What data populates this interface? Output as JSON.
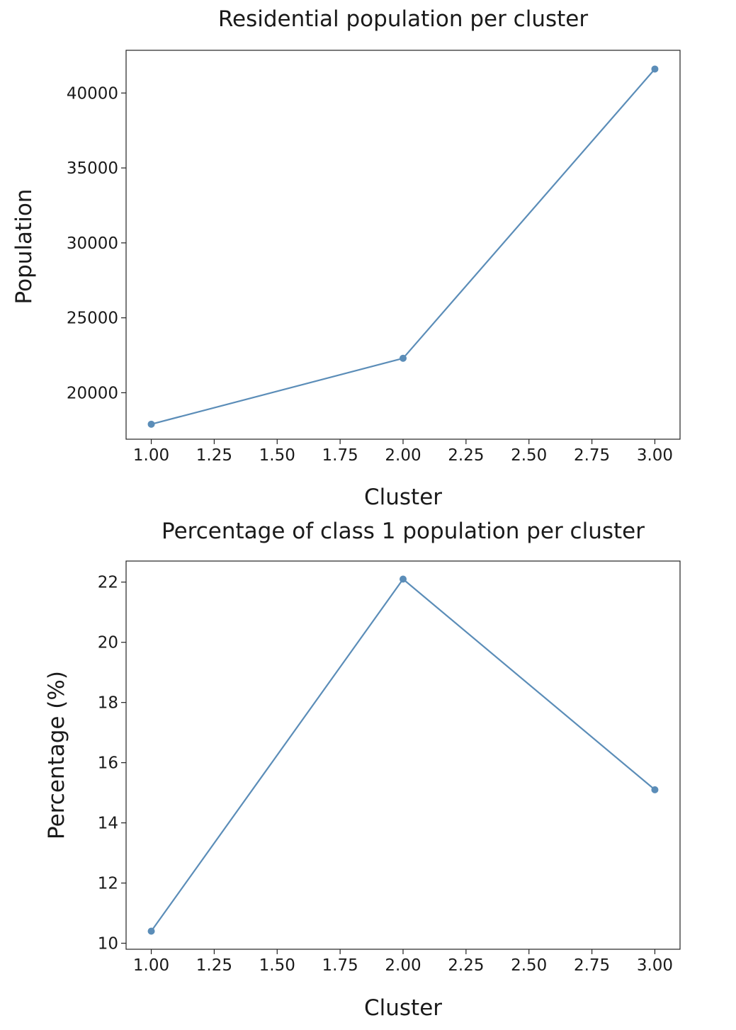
{
  "chart_data": [
    {
      "type": "line",
      "title": "Residential population per cluster",
      "xlabel": "Cluster",
      "ylabel": "Population",
      "x": [
        1,
        2,
        3
      ],
      "series": [
        {
          "values": [
            17900,
            22300,
            41600
          ],
          "color": "#5b8db8",
          "marker": "circle"
        }
      ],
      "xlim": [
        0.9,
        3.1
      ],
      "ylim": [
        16900,
        42850
      ],
      "xticks": [
        "1.00",
        "1.25",
        "1.50",
        "1.75",
        "2.00",
        "2.25",
        "2.50",
        "2.75",
        "3.00"
      ],
      "yticks": [
        "20000",
        "25000",
        "30000",
        "35000",
        "40000"
      ],
      "grid": false
    },
    {
      "type": "line",
      "title": "Percentage of class 1 population per cluster",
      "xlabel": "Cluster",
      "ylabel": "Percentage (%)",
      "x": [
        1,
        2,
        3
      ],
      "series": [
        {
          "values": [
            10.4,
            22.1,
            15.1
          ],
          "color": "#5b8db8",
          "marker": "circle"
        }
      ],
      "xlim": [
        0.9,
        3.1
      ],
      "ylim": [
        9.8,
        22.7
      ],
      "xticks": [
        "1.00",
        "1.25",
        "1.50",
        "1.75",
        "2.00",
        "2.25",
        "2.50",
        "2.75",
        "3.00"
      ],
      "yticks": [
        "10",
        "12",
        "14",
        "16",
        "18",
        "20",
        "22"
      ],
      "grid": false
    }
  ]
}
